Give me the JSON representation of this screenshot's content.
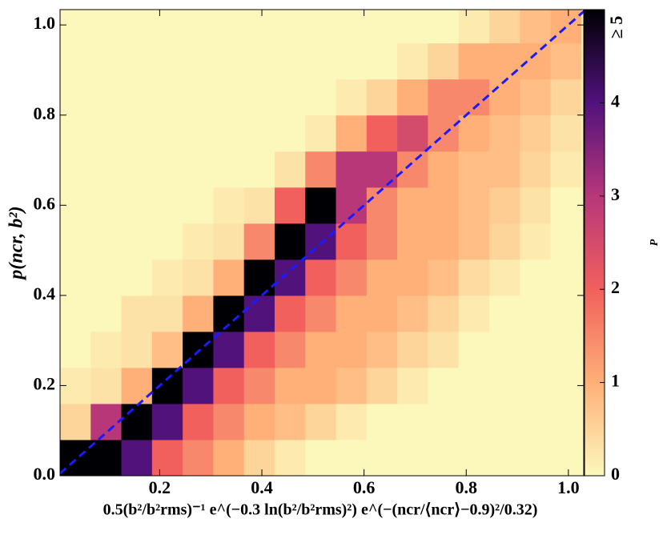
{
  "chart_data": {
    "type": "hist2d",
    "xlabel": "0.5(b²/b²rms)⁻¹ e^(−0.3 ln(b²/b²rms)²) e^(−(ncr/⟨ncr⟩−0.9)²/0.32)",
    "ylabel": "p(ncr, b²)",
    "colorbar_label": "P",
    "xlim": [
      0.005,
      1.03
    ],
    "ylim": [
      0,
      1.034
    ],
    "xticks": [
      0.2,
      0.4,
      0.6,
      0.8,
      {
        "value": 1.0,
        "label": "1.0"
      }
    ],
    "yticks": [
      {
        "value": 0,
        "label": "0.0"
      },
      0.2,
      0.4,
      0.6,
      0.8,
      {
        "value": 1.0,
        "label": "1.0"
      }
    ],
    "clim": [
      0,
      5
    ],
    "cticks": [
      0,
      1,
      2,
      3,
      4,
      {
        "value": 5,
        "label": "≥ 5"
      }
    ],
    "colorscale": [
      "#fcf8bc",
      "#feb078",
      "#f1605d",
      "#b73779",
      "#51127c",
      "#000004"
    ],
    "xbins": [
      0.005,
      0.065,
      0.125,
      0.185,
      0.245,
      0.305,
      0.365,
      0.425,
      0.485,
      0.545,
      0.605,
      0.665,
      0.725,
      0.785,
      0.845,
      0.905,
      0.965,
      1.025
    ],
    "ybins": [
      0,
      0.08,
      0.16,
      0.24,
      0.32,
      0.4,
      0.48,
      0.56,
      0.64,
      0.72,
      0.8,
      0.88,
      0.96,
      1.04
    ],
    "z": [
      [
        5,
        5,
        4,
        2,
        1.5,
        1,
        0.5,
        0.2,
        0,
        0,
        0,
        0,
        0,
        0,
        0,
        0,
        0
      ],
      [
        0.5,
        3,
        5,
        4,
        2,
        1.5,
        1,
        0.8,
        0.5,
        0.2,
        0,
        0,
        0,
        0,
        0,
        0,
        0
      ],
      [
        0.2,
        0.3,
        1,
        5,
        4,
        2,
        1.5,
        1,
        1,
        0.8,
        0.5,
        0.2,
        0,
        0,
        0,
        0,
        0
      ],
      [
        0,
        0.2,
        0.3,
        0.8,
        5,
        4,
        2,
        1.5,
        1,
        1,
        0.8,
        0.5,
        0.3,
        0,
        0,
        0,
        0
      ],
      [
        0,
        0,
        0.3,
        0.3,
        1,
        5,
        4,
        2,
        1.5,
        1,
        1,
        0.8,
        0.5,
        0.2,
        0,
        0,
        0
      ],
      [
        0,
        0,
        0,
        0.2,
        0.3,
        1,
        5,
        4,
        2,
        1.5,
        1,
        1,
        0.8,
        0.4,
        0.2,
        0,
        0
      ],
      [
        0,
        0,
        0,
        0,
        0.2,
        0.3,
        1.5,
        5,
        4,
        2,
        1.5,
        1,
        1,
        0.8,
        0.5,
        0.2,
        0
      ],
      [
        0,
        0,
        0,
        0,
        0,
        0.2,
        0.3,
        2,
        5,
        3,
        1.5,
        1,
        1,
        0.8,
        0.6,
        0.3,
        0
      ],
      [
        0,
        0,
        0,
        0,
        0,
        0,
        0,
        0.3,
        1.5,
        3,
        3,
        1.5,
        1,
        0.8,
        0.8,
        0.5,
        0.2
      ],
      [
        0,
        0,
        0,
        0,
        0,
        0,
        0,
        0,
        0.2,
        1,
        2,
        2.5,
        1.5,
        1,
        0.8,
        0.6,
        0.3
      ],
      [
        0,
        0,
        0,
        0,
        0,
        0,
        0,
        0,
        0,
        0.2,
        0.5,
        1,
        1.5,
        1.5,
        1,
        0.8,
        0.5
      ],
      [
        0,
        0,
        0,
        0,
        0,
        0,
        0,
        0,
        0,
        0,
        0,
        0.2,
        0.5,
        1,
        1,
        1,
        0.8
      ],
      [
        0,
        0,
        0,
        0,
        0,
        0,
        0,
        0,
        0,
        0,
        0,
        0,
        0,
        0.2,
        0.5,
        0.8,
        1
      ]
    ],
    "reference_line": {
      "color": "#1a1aff",
      "x": [
        0.005,
        1.05
      ],
      "y": [
        0.005,
        1.05
      ]
    }
  }
}
